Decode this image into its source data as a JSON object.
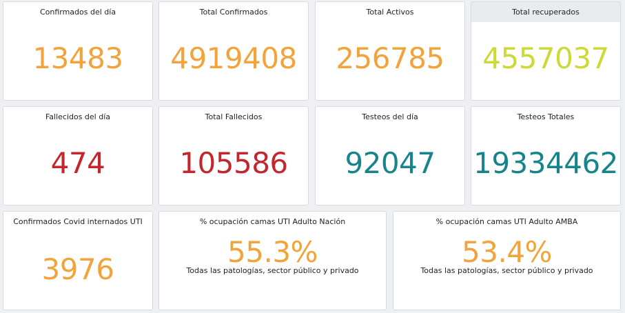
{
  "colors": {
    "orange": "#f2a33a",
    "yellowgreen": "#cdd936",
    "red": "#c4262e",
    "teal": "#17838a"
  },
  "panels": {
    "confirmados_dia": {
      "title": "Confirmados del día",
      "value": "13483"
    },
    "total_confirmados": {
      "title": "Total Confirmados",
      "value": "4919408"
    },
    "total_activos": {
      "title": "Total Activos",
      "value": "256785"
    },
    "total_recuperados": {
      "title": "Total recuperados",
      "value": "4557037"
    },
    "fallecidos_dia": {
      "title": "Fallecidos del día",
      "value": "474"
    },
    "total_fallecidos": {
      "title": "Total Fallecidos",
      "value": "105586"
    },
    "testeos_dia": {
      "title": "Testeos del día",
      "value": "92047"
    },
    "testeos_totales": {
      "title": "Testeos Totales",
      "value": "19334462"
    },
    "internados_uti": {
      "title": "Confirmados Covid internados UTI",
      "value": "3976"
    },
    "ocupacion_nacion": {
      "title": "% ocupación camas UTI Adulto Nación",
      "value": "55.3%",
      "subtitle": "Todas las patologías, sector público y privado"
    },
    "ocupacion_amba": {
      "title": "% ocupación camas UTI Adulto AMBA",
      "value": "53.4%",
      "subtitle": "Todas las patologías, sector público y privado"
    }
  }
}
